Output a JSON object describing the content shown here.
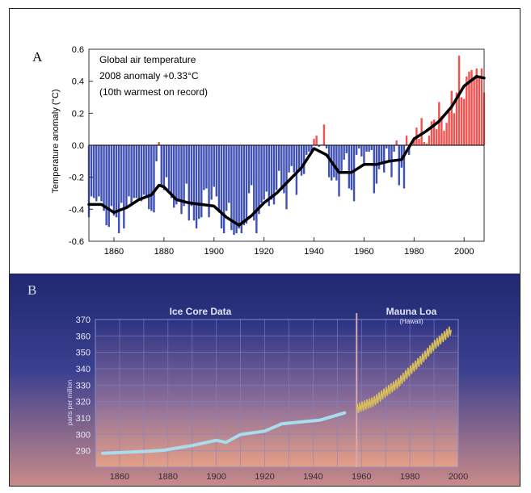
{
  "panels": {
    "a": {
      "letter": "A"
    },
    "b": {
      "letter": "B"
    }
  },
  "colors": {
    "warm_bar": "#ef5350",
    "cool_bar": "#3f51b5",
    "smooth_line": "#000000",
    "ice_core": "#a9dcec",
    "mauna_loa": "#d8be5a",
    "grid": "#7f86c8"
  },
  "chart_data": [
    {
      "type": "bar",
      "title": "Global air temperature",
      "annotation_lines": [
        "Global air temperature",
        "2008 anomaly +0.33°C",
        "(10th warmest on record)"
      ],
      "ylabel": "Temperature anomaly (°C)",
      "xlabel": "",
      "xlim": [
        1850,
        2008
      ],
      "ylim": [
        -0.6,
        0.6
      ],
      "x_ticks": [
        1860,
        1880,
        1900,
        1920,
        1940,
        1960,
        1980,
        2000
      ],
      "y_ticks": [
        "0.6",
        "0.4",
        "0.2",
        "0.0",
        "-0.2",
        "-0.4",
        "-0.6"
      ],
      "y_tick_values": [
        0.6,
        0.4,
        0.2,
        0.0,
        -0.2,
        -0.4,
        -0.6
      ],
      "years": [
        1850,
        1851,
        1852,
        1853,
        1854,
        1855,
        1856,
        1857,
        1858,
        1859,
        1860,
        1861,
        1862,
        1863,
        1864,
        1865,
        1866,
        1867,
        1868,
        1869,
        1870,
        1871,
        1872,
        1873,
        1874,
        1875,
        1876,
        1877,
        1878,
        1879,
        1880,
        1881,
        1882,
        1883,
        1884,
        1885,
        1886,
        1887,
        1888,
        1889,
        1890,
        1891,
        1892,
        1893,
        1894,
        1895,
        1896,
        1897,
        1898,
        1899,
        1900,
        1901,
        1902,
        1903,
        1904,
        1905,
        1906,
        1907,
        1908,
        1909,
        1910,
        1911,
        1912,
        1913,
        1914,
        1915,
        1916,
        1917,
        1918,
        1919,
        1920,
        1921,
        1922,
        1923,
        1924,
        1925,
        1926,
        1927,
        1928,
        1929,
        1930,
        1931,
        1932,
        1933,
        1934,
        1935,
        1936,
        1937,
        1938,
        1939,
        1940,
        1941,
        1942,
        1943,
        1944,
        1945,
        1946,
        1947,
        1948,
        1949,
        1950,
        1951,
        1952,
        1953,
        1954,
        1955,
        1956,
        1957,
        1958,
        1959,
        1960,
        1961,
        1962,
        1963,
        1964,
        1965,
        1966,
        1967,
        1968,
        1969,
        1970,
        1971,
        1972,
        1973,
        1974,
        1975,
        1976,
        1977,
        1978,
        1979,
        1980,
        1981,
        1982,
        1983,
        1984,
        1985,
        1986,
        1987,
        1988,
        1989,
        1990,
        1991,
        1992,
        1993,
        1994,
        1995,
        1996,
        1997,
        1998,
        1999,
        2000,
        2001,
        2002,
        2003,
        2004,
        2005,
        2006,
        2007,
        2008
      ],
      "anomalies": [
        -0.45,
        -0.32,
        -0.33,
        -0.35,
        -0.32,
        -0.35,
        -0.41,
        -0.5,
        -0.51,
        -0.38,
        -0.44,
        -0.45,
        -0.55,
        -0.36,
        -0.52,
        -0.39,
        -0.32,
        -0.38,
        -0.33,
        -0.33,
        -0.34,
        -0.35,
        -0.31,
        -0.33,
        -0.4,
        -0.41,
        -0.42,
        -0.1,
        0.02,
        -0.25,
        -0.28,
        -0.2,
        -0.28,
        -0.33,
        -0.39,
        -0.37,
        -0.34,
        -0.43,
        -0.38,
        -0.24,
        -0.47,
        -0.38,
        -0.47,
        -0.52,
        -0.46,
        -0.45,
        -0.28,
        -0.27,
        -0.45,
        -0.34,
        -0.26,
        -0.32,
        -0.42,
        -0.52,
        -0.55,
        -0.41,
        -0.36,
        -0.53,
        -0.56,
        -0.55,
        -0.52,
        -0.55,
        -0.5,
        -0.49,
        -0.3,
        -0.25,
        -0.47,
        -0.55,
        -0.43,
        -0.36,
        -0.34,
        -0.29,
        -0.38,
        -0.34,
        -0.37,
        -0.28,
        -0.16,
        -0.28,
        -0.3,
        -0.4,
        -0.17,
        -0.13,
        -0.17,
        -0.31,
        -0.16,
        -0.19,
        -0.18,
        -0.06,
        -0.04,
        -0.05,
        0.04,
        0.06,
        -0.01,
        0.0,
        0.13,
        -0.02,
        -0.2,
        -0.22,
        -0.2,
        -0.22,
        -0.32,
        -0.16,
        -0.09,
        -0.05,
        -0.27,
        -0.28,
        -0.35,
        -0.06,
        -0.02,
        -0.07,
        -0.13,
        -0.04,
        -0.04,
        -0.03,
        -0.3,
        -0.24,
        -0.15,
        -0.12,
        -0.17,
        -0.02,
        -0.1,
        -0.2,
        -0.04,
        0.03,
        -0.25,
        -0.14,
        -0.27,
        0.06,
        -0.06,
        0.01,
        0.05,
        0.11,
        0.04,
        0.17,
        0.02,
        0.01,
        0.06,
        0.15,
        0.16,
        0.1,
        0.27,
        0.18,
        0.09,
        0.14,
        0.21,
        0.34,
        0.2,
        0.33,
        0.56,
        0.3,
        0.29,
        0.43,
        0.46,
        0.47,
        0.42,
        0.48,
        0.42,
        0.48,
        0.33
      ],
      "smooth": [
        [
          1850,
          -0.37
        ],
        [
          1855,
          -0.37
        ],
        [
          1860,
          -0.42
        ],
        [
          1865,
          -0.39
        ],
        [
          1870,
          -0.34
        ],
        [
          1875,
          -0.31
        ],
        [
          1878,
          -0.25
        ],
        [
          1880,
          -0.26
        ],
        [
          1885,
          -0.34
        ],
        [
          1890,
          -0.36
        ],
        [
          1895,
          -0.37
        ],
        [
          1900,
          -0.38
        ],
        [
          1905,
          -0.45
        ],
        [
          1910,
          -0.5
        ],
        [
          1915,
          -0.44
        ],
        [
          1920,
          -0.36
        ],
        [
          1925,
          -0.3
        ],
        [
          1930,
          -0.22
        ],
        [
          1935,
          -0.14
        ],
        [
          1940,
          -0.02
        ],
        [
          1945,
          -0.06
        ],
        [
          1950,
          -0.17
        ],
        [
          1955,
          -0.17
        ],
        [
          1960,
          -0.12
        ],
        [
          1965,
          -0.12
        ],
        [
          1970,
          -0.1
        ],
        [
          1975,
          -0.09
        ],
        [
          1980,
          0.04
        ],
        [
          1985,
          0.09
        ],
        [
          1990,
          0.15
        ],
        [
          1995,
          0.24
        ],
        [
          2000,
          0.37
        ],
        [
          2005,
          0.43
        ],
        [
          2008,
          0.42
        ]
      ]
    },
    {
      "type": "line",
      "ylabel": "parts per million",
      "xlabel": "",
      "xlim": [
        1850,
        2000
      ],
      "ylim": [
        280,
        370
      ],
      "x_ticks": [
        1860,
        1880,
        1900,
        1920,
        1940,
        1960,
        1980,
        2000
      ],
      "y_ticks": [
        "370",
        "360",
        "350",
        "340",
        "330",
        "320",
        "310",
        "300",
        "290"
      ],
      "y_tick_values": [
        370,
        360,
        350,
        340,
        330,
        320,
        310,
        300,
        290
      ],
      "region_labels": [
        "Ice Core Data",
        "Mauna Loa",
        "(Hawaii)"
      ],
      "divider_year": 1958,
      "series": [
        {
          "name": "Ice Core Data",
          "x": [
            1853,
            1860,
            1870,
            1878,
            1890,
            1900,
            1904,
            1910,
            1920,
            1927,
            1943,
            1953
          ],
          "y": [
            288.5,
            288.9,
            289.6,
            290.3,
            293.2,
            296.4,
            295.1,
            299.9,
            302.0,
            306.4,
            308.7,
            313.1
          ]
        },
        {
          "name": "Mauna Loa",
          "x": [
            1958,
            1960,
            1965,
            1970,
            1975,
            1980,
            1985,
            1990,
            1995,
            1997
          ],
          "y": [
            315.5,
            316.9,
            320.0,
            325.7,
            331.1,
            338.7,
            345.9,
            354.2,
            360.9,
            363.7
          ],
          "seasonal_amplitude": 3
        }
      ]
    }
  ]
}
